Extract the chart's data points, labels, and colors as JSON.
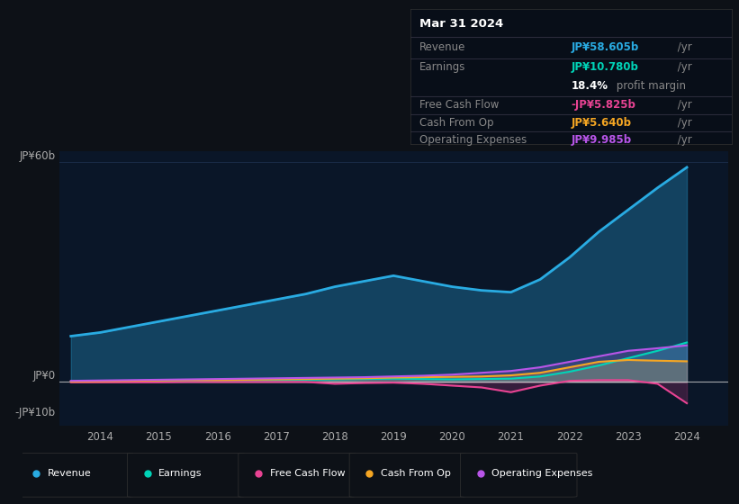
{
  "background_color": "#0d1117",
  "plot_bg_color": "#0a1628",
  "title": "Mar 31 2024",
  "years": [
    2013.5,
    2014,
    2014.5,
    2015,
    2015.5,
    2016,
    2016.5,
    2017,
    2017.5,
    2018,
    2018.5,
    2019,
    2019.5,
    2020,
    2020.5,
    2021,
    2021.5,
    2022,
    2022.5,
    2023,
    2023.5,
    2024
  ],
  "revenue": [
    12.5,
    13.5,
    15.0,
    16.5,
    18.0,
    19.5,
    21.0,
    22.5,
    24.0,
    26.0,
    27.5,
    29.0,
    27.5,
    26.0,
    25.0,
    24.5,
    28.0,
    34.0,
    41.0,
    47.0,
    53.0,
    58.6
  ],
  "earnings": [
    0.1,
    0.2,
    0.2,
    0.3,
    0.3,
    0.4,
    0.4,
    0.5,
    0.6,
    0.7,
    0.8,
    0.9,
    0.8,
    0.7,
    0.8,
    0.9,
    1.5,
    2.8,
    4.5,
    6.5,
    8.5,
    10.78
  ],
  "free_cash_flow": [
    -0.1,
    -0.1,
    -0.1,
    -0.1,
    0.0,
    0.0,
    0.0,
    0.0,
    0.0,
    -0.5,
    -0.3,
    -0.2,
    -0.5,
    -1.0,
    -1.5,
    -2.8,
    -1.0,
    0.3,
    0.5,
    0.5,
    -0.5,
    -5.825
  ],
  "cash_from_op": [
    0.1,
    0.2,
    0.3,
    0.4,
    0.5,
    0.5,
    0.6,
    0.7,
    0.8,
    0.9,
    1.0,
    1.2,
    1.3,
    1.4,
    1.5,
    1.8,
    2.5,
    4.0,
    5.5,
    6.0,
    5.8,
    5.64
  ],
  "op_expenses": [
    0.3,
    0.4,
    0.5,
    0.6,
    0.7,
    0.8,
    0.9,
    1.0,
    1.1,
    1.2,
    1.3,
    1.5,
    1.7,
    2.0,
    2.5,
    3.0,
    4.0,
    5.5,
    7.0,
    8.5,
    9.2,
    9.985
  ],
  "ylim": [
    -12,
    63
  ],
  "y_zero": 0,
  "y_top": 60,
  "y_neg": -10,
  "xlim": [
    2013.3,
    2024.7
  ],
  "xticks": [
    2014,
    2015,
    2016,
    2017,
    2018,
    2019,
    2020,
    2021,
    2022,
    2023,
    2024
  ],
  "revenue_color": "#29abe2",
  "earnings_color": "#00d4b8",
  "fcf_color": "#e84393",
  "cash_op_color": "#f5a623",
  "op_exp_color": "#b855e8",
  "legend_labels": [
    "Revenue",
    "Earnings",
    "Free Cash Flow",
    "Cash From Op",
    "Operating Expenses"
  ],
  "info_box": {
    "date": "Mar 31 2024",
    "revenue_label": "Revenue",
    "revenue_val": "JP¥58.605b",
    "earnings_label": "Earnings",
    "earnings_val": "JP¥10.780b",
    "profit_margin": "18.4%",
    "fcf_label": "Free Cash Flow",
    "fcf_val": "-JP¥5.825b",
    "cash_op_label": "Cash From Op",
    "cash_op_val": "JP¥5.640b",
    "op_exp_label": "Operating Expenses",
    "op_exp_val": "JP¥9.985b"
  },
  "grid_color": "#1e3050",
  "zero_line_color": "#cccccc",
  "text_color": "#aaaaaa",
  "info_bg_color": "#080e18"
}
